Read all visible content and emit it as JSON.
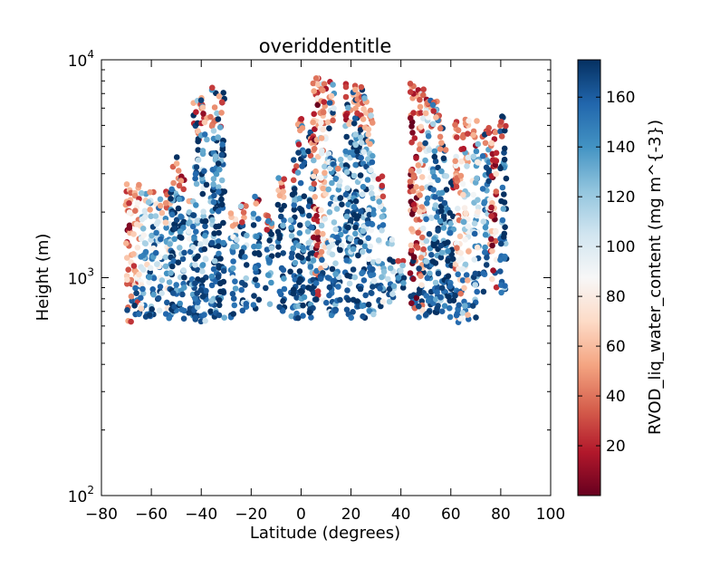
{
  "chart_data": {
    "type": "scatter",
    "title": "overiddentitle",
    "xlabel": "Latitude (degrees)",
    "ylabel": "Height (m)",
    "xlim": [
      -80,
      100
    ],
    "ylim": [
      100,
      10000
    ],
    "yscale": "log",
    "grid": false,
    "x_ticks": [
      -80,
      -60,
      -40,
      -20,
      0,
      20,
      40,
      60,
      80,
      100
    ],
    "x_tick_labels": [
      "−80",
      "−60",
      "−40",
      "−20",
      "0",
      "20",
      "40",
      "60",
      "80",
      "100"
    ],
    "y_ticks": [
      100,
      1000,
      10000
    ],
    "y_tick_labels": [
      {
        "base": "10",
        "exp": "2"
      },
      {
        "base": "10",
        "exp": "3"
      },
      {
        "base": "10",
        "exp": "4"
      }
    ],
    "colorbar": {
      "label": "RVOD_liq_water_content (mg m^{-3})",
      "colormap": "RdBu",
      "range": [
        0,
        175
      ],
      "ticks": [
        20,
        40,
        60,
        80,
        100,
        120,
        140,
        160
      ],
      "tick_labels": [
        "20",
        "40",
        "60",
        "80",
        "100",
        "120",
        "140",
        "160"
      ],
      "colors": [
        "#67001f",
        "#b2182b",
        "#d6604d",
        "#f4a582",
        "#fddbc7",
        "#f7f7f7",
        "#d1e5f0",
        "#92c5de",
        "#4393c3",
        "#2166ac",
        "#053061"
      ]
    },
    "series": [
      {
        "description": "vertical profile columns (latitude, base height m, top height m, dominant colour value)",
        "profiles": [
          {
            "lat": -69,
            "base": 620,
            "top": 2700,
            "value": 40
          },
          {
            "lat": -66,
            "base": 650,
            "top": 2700,
            "value": 60
          },
          {
            "lat": -63,
            "base": 650,
            "top": 2500,
            "value": 110
          },
          {
            "lat": -60,
            "base": 650,
            "top": 2600,
            "value": 130
          },
          {
            "lat": -57,
            "base": 650,
            "top": 2400,
            "value": 120
          },
          {
            "lat": -53,
            "base": 650,
            "top": 2600,
            "value": 110
          },
          {
            "lat": -51,
            "base": 620,
            "top": 3600,
            "value": 160
          },
          {
            "lat": -48,
            "base": 620,
            "top": 3300,
            "value": 150
          },
          {
            "lat": -44,
            "base": 650,
            "top": 2500,
            "value": 130
          },
          {
            "lat": -42,
            "base": 620,
            "top": 6500,
            "value": 150
          },
          {
            "lat": -39,
            "base": 620,
            "top": 7000,
            "value": 140
          },
          {
            "lat": -35,
            "base": 620,
            "top": 7500,
            "value": 160
          },
          {
            "lat": -32,
            "base": 650,
            "top": 7500,
            "value": 170
          },
          {
            "lat": -27,
            "base": 650,
            "top": 2000,
            "value": 120
          },
          {
            "lat": -23,
            "base": 700,
            "top": 2200,
            "value": 140
          },
          {
            "lat": -18,
            "base": 700,
            "top": 2400,
            "value": 150
          },
          {
            "lat": -13,
            "base": 700,
            "top": 2000,
            "value": 160
          },
          {
            "lat": -8,
            "base": 650,
            "top": 3000,
            "value": 170
          },
          {
            "lat": -3,
            "base": 650,
            "top": 3500,
            "value": 165
          },
          {
            "lat": 0,
            "base": 650,
            "top": 6000,
            "value": 170
          },
          {
            "lat": 4,
            "base": 650,
            "top": 5000,
            "value": 150
          },
          {
            "lat": 6,
            "base": 700,
            "top": 8300,
            "value": 40
          },
          {
            "lat": 9,
            "base": 700,
            "top": 8300,
            "value": 80
          },
          {
            "lat": 12,
            "base": 650,
            "top": 8000,
            "value": 130
          },
          {
            "lat": 15,
            "base": 700,
            "top": 3500,
            "value": 140
          },
          {
            "lat": 19,
            "base": 650,
            "top": 7800,
            "value": 150
          },
          {
            "lat": 22,
            "base": 650,
            "top": 8000,
            "value": 160
          },
          {
            "lat": 25,
            "base": 650,
            "top": 7500,
            "value": 140
          },
          {
            "lat": 28,
            "base": 650,
            "top": 6000,
            "value": 130
          },
          {
            "lat": 32,
            "base": 700,
            "top": 3000,
            "value": 120
          },
          {
            "lat": 36,
            "base": 750,
            "top": 1500,
            "value": 140
          },
          {
            "lat": 40,
            "base": 900,
            "top": 1200,
            "value": 150
          },
          {
            "lat": 45,
            "base": 650,
            "top": 7900,
            "value": 20
          },
          {
            "lat": 48,
            "base": 650,
            "top": 7500,
            "value": 60
          },
          {
            "lat": 51,
            "base": 650,
            "top": 7000,
            "value": 130
          },
          {
            "lat": 54,
            "base": 650,
            "top": 6500,
            "value": 160
          },
          {
            "lat": 57,
            "base": 700,
            "top": 5000,
            "value": 150
          },
          {
            "lat": 60,
            "base": 650,
            "top": 3000,
            "value": 170
          },
          {
            "lat": 63,
            "base": 620,
            "top": 5500,
            "value": 60
          },
          {
            "lat": 66,
            "base": 620,
            "top": 5500,
            "value": 90
          },
          {
            "lat": 70,
            "base": 650,
            "top": 5500,
            "value": 120
          },
          {
            "lat": 74,
            "base": 800,
            "top": 5000,
            "value": 140
          },
          {
            "lat": 77,
            "base": 900,
            "top": 5000,
            "value": 40
          },
          {
            "lat": 81,
            "base": 850,
            "top": 5500,
            "value": 160
          }
        ]
      }
    ]
  }
}
